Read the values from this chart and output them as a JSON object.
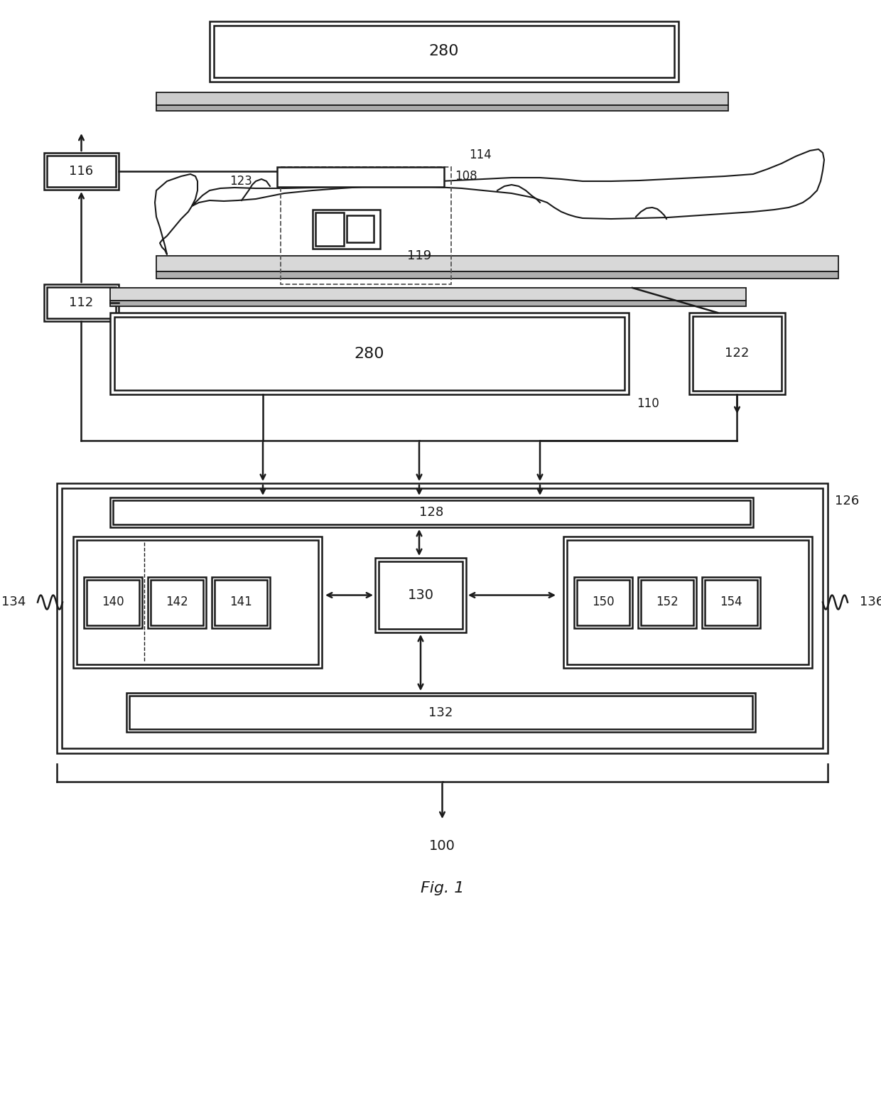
{
  "bg_color": "#ffffff",
  "line_color": "#1a1a1a",
  "figsize": [
    12.4,
    15.62
  ],
  "dpi": 100,
  "labels": {
    "280_top": "280",
    "116": "116",
    "114": "114",
    "108": "108",
    "123": "123",
    "119": "119",
    "112": "112",
    "280_bot": "280",
    "122": "122",
    "110": "110",
    "126": "126",
    "128": "128",
    "130": "130",
    "132": "132",
    "134": "134",
    "136": "136",
    "140": "140",
    "142": "142",
    "141": "141",
    "150": "150",
    "152": "152",
    "154": "154",
    "100": "100",
    "fig1": "Fig. 1"
  }
}
